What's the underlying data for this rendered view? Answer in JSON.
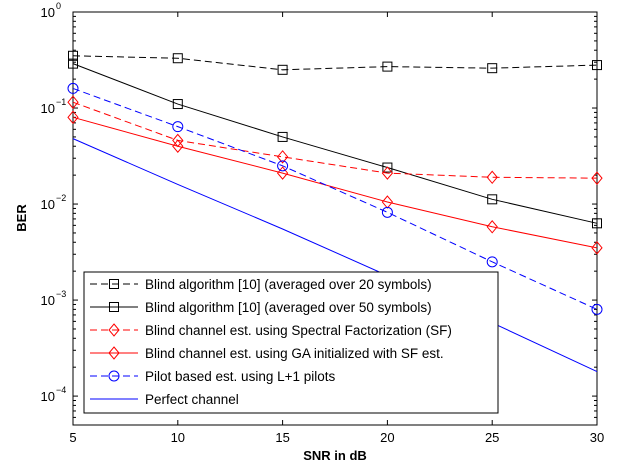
{
  "chart_data": {
    "type": "line",
    "xlabel": "SNR in dB",
    "ylabel": "BER",
    "xlim": [
      5,
      30
    ],
    "ylim": [
      5e-05,
      1
    ],
    "yscale": "log",
    "grid": false,
    "legend_position": "bottom-left",
    "x_ticks": [
      "5",
      "10",
      "15",
      "20",
      "25",
      "30"
    ],
    "y_ticks": [
      {
        "base": "10",
        "exp": "0"
      },
      {
        "base": "10",
        "exp": "−1"
      },
      {
        "base": "10",
        "exp": "−2"
      },
      {
        "base": "10",
        "exp": "−3"
      },
      {
        "base": "10",
        "exp": "−4"
      }
    ],
    "x": [
      5,
      10,
      15,
      20,
      25,
      30
    ],
    "series": [
      {
        "name": "Blind algorithm [10] (averaged over 20 symbols)",
        "color": "#000000",
        "dash": "dashed",
        "marker": "square",
        "values": [
          0.35,
          0.33,
          0.25,
          0.27,
          0.26,
          0.28
        ]
      },
      {
        "name": "Blind algorithm [10] (averaged over 50 symbols)",
        "color": "#000000",
        "dash": "solid",
        "marker": "square",
        "values": [
          0.29,
          0.11,
          0.05,
          0.024,
          0.0112,
          0.0063
        ]
      },
      {
        "name": "Blind channel est. using Spectral Factorization (SF)",
        "color": "#ff0000",
        "dash": "dashed",
        "marker": "diamond",
        "values": [
          0.115,
          0.046,
          0.031,
          0.021,
          0.019,
          0.0186
        ]
      },
      {
        "name": "Blind channel est. using GA initialized with SF est.",
        "color": "#ff0000",
        "dash": "solid",
        "marker": "diamond",
        "values": [
          0.08,
          0.04,
          0.021,
          0.0105,
          0.0058,
          0.0035
        ]
      },
      {
        "name": "Pilot based est. using L+1 pilots",
        "color": "#0000ff",
        "dash": "dashed",
        "marker": "circle",
        "values": [
          0.16,
          0.064,
          0.025,
          0.0082,
          0.0025,
          0.0008
        ]
      },
      {
        "name": "Perfect channel",
        "color": "#0000ff",
        "dash": "solid",
        "marker": "none",
        "values": [
          0.048,
          0.016,
          0.0055,
          0.0018,
          0.00058,
          0.00018
        ]
      }
    ]
  }
}
